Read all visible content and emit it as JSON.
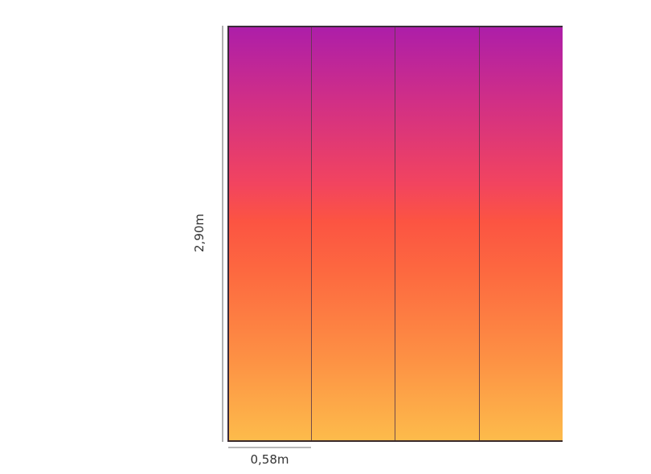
{
  "diagram": {
    "height_label": "2,90m",
    "width_label": "0,58m",
    "panel_count_visible": 4,
    "gradient_colors": {
      "top": "#ad1ea9",
      "middle": "#fc5442",
      "bottom": "#fdbb4b"
    }
  }
}
